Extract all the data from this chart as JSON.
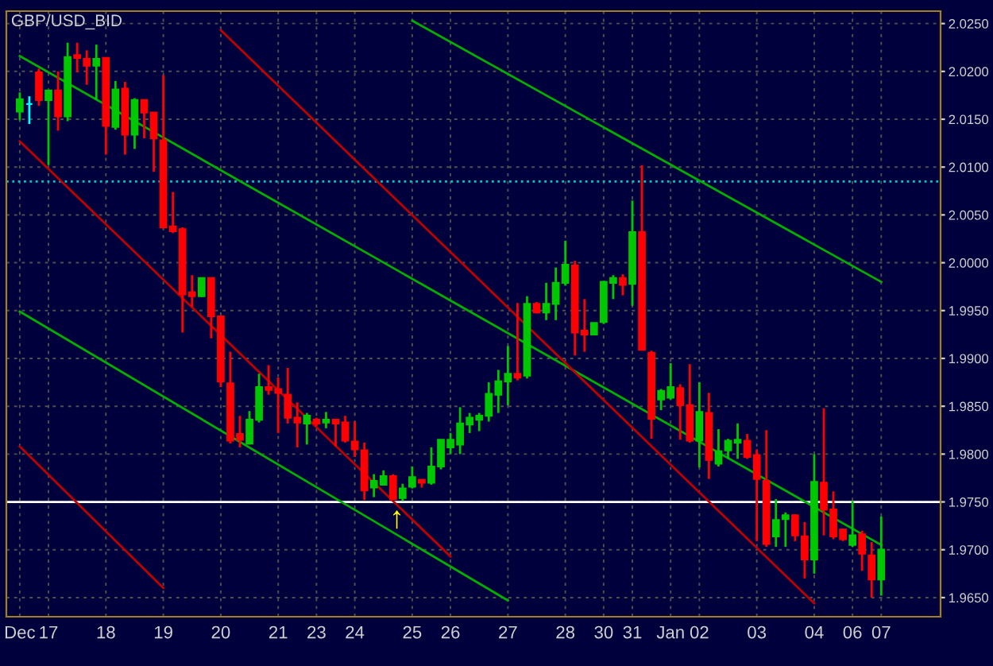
{
  "chart_data": {
    "type": "candlestick",
    "title": "GBP/USD_BID",
    "categories": [
      "Dec",
      null,
      null,
      "17",
      null,
      null,
      null,
      null,
      null,
      "18",
      null,
      null,
      null,
      null,
      null,
      "19",
      null,
      null,
      null,
      null,
      null,
      "20",
      null,
      null,
      null,
      null,
      null,
      "21",
      null,
      null,
      null,
      "23",
      null,
      null,
      null,
      "24",
      null,
      null,
      null,
      null,
      null,
      "25",
      null,
      null,
      null,
      "26",
      null,
      null,
      null,
      null,
      null,
      "27",
      null,
      null,
      null,
      null,
      null,
      "28",
      null,
      null,
      null,
      "30",
      null,
      null,
      "31",
      null,
      null,
      null,
      "Jan",
      null,
      null,
      "02",
      null,
      null,
      null,
      null,
      null,
      "03",
      null,
      null,
      null,
      null,
      null,
      "04",
      null,
      null,
      null,
      "06",
      null,
      null,
      "07"
    ],
    "series": [
      {
        "ohlc": [
          [
            2.0158,
            2.0178,
            2.0149,
            2.0171
          ],
          [
            2.0166,
            2.0174,
            2.0145,
            2.0166
          ],
          [
            2.0199,
            2.0203,
            2.0164,
            2.017
          ],
          [
            2.017,
            2.018,
            2.0102,
            2.018
          ],
          [
            2.018,
            2.02,
            2.0138,
            2.0153
          ],
          [
            2.0153,
            2.023,
            2.0148,
            2.0215
          ],
          [
            2.0217,
            2.023,
            2.0199,
            2.0214
          ],
          [
            2.0213,
            2.0222,
            2.0186,
            2.0206
          ],
          [
            2.0206,
            2.0228,
            2.017,
            2.0213
          ],
          [
            2.0214,
            2.0214,
            2.0113,
            2.0143
          ],
          [
            2.0142,
            2.019,
            2.0139,
            2.0181
          ],
          [
            2.0182,
            2.0189,
            2.0113,
            2.0134
          ],
          [
            2.0134,
            2.0172,
            2.0119,
            2.017
          ],
          [
            2.017,
            2.017,
            2.013,
            2.0157
          ],
          [
            2.0157,
            2.0157,
            2.0095,
            2.013
          ],
          [
            2.0128,
            2.0196,
            2.0036,
            2.0037
          ],
          [
            2.0038,
            2.0074,
            2.0031,
            2.0033
          ],
          [
            2.0035,
            2.0037,
            1.9927,
            1.9967
          ],
          [
            1.9969,
            1.9987,
            1.9954,
            1.9965
          ],
          [
            1.9965,
            1.9984,
            1.9964,
            1.9984
          ],
          [
            1.9984,
            1.9984,
            1.9921,
            1.9944
          ],
          [
            1.9944,
            1.9944,
            1.987,
            1.9876
          ],
          [
            1.9874,
            1.9907,
            1.9811,
            1.9814
          ],
          [
            1.9821,
            1.984,
            1.9807,
            1.9815
          ],
          [
            1.9811,
            1.9845,
            1.981,
            1.9836
          ],
          [
            1.9836,
            1.9884,
            1.9833,
            1.987
          ],
          [
            1.987,
            1.9893,
            1.9862,
            1.9867
          ],
          [
            1.9868,
            1.988,
            1.9822,
            1.9864
          ],
          [
            1.9862,
            1.989,
            1.9832,
            1.9838
          ],
          [
            1.9838,
            1.9854,
            1.9807,
            1.9833
          ],
          [
            1.9832,
            1.9843,
            1.981,
            1.984
          ],
          [
            1.9836,
            1.9838,
            1.9829,
            1.9832
          ],
          [
            1.9833,
            1.9844,
            1.9827,
            1.9836
          ],
          [
            1.9836,
            1.9836,
            1.9808,
            1.9832
          ],
          [
            1.9833,
            1.984,
            1.9812,
            1.9814
          ],
          [
            1.9813,
            1.9834,
            1.9797,
            1.9805
          ],
          [
            1.9804,
            1.9812,
            1.9752,
            1.9762
          ],
          [
            1.9765,
            1.9779,
            1.9755,
            1.9772
          ],
          [
            1.9768,
            1.9783,
            1.9768,
            1.9777
          ],
          [
            1.9777,
            1.9779,
            1.9753,
            1.9753
          ],
          [
            1.9754,
            1.9769,
            1.9751,
            1.9764
          ],
          [
            1.9766,
            1.9787,
            1.9764,
            1.9776
          ],
          [
            1.9773,
            1.9773,
            1.9765,
            1.977
          ],
          [
            1.977,
            1.9807,
            1.9768,
            1.9787
          ],
          [
            1.9787,
            1.9815,
            1.9784,
            1.9815
          ],
          [
            1.9807,
            1.9822,
            1.98,
            1.9815
          ],
          [
            1.981,
            1.9849,
            1.98,
            1.9832
          ],
          [
            1.9831,
            1.9843,
            1.9822,
            1.9838
          ],
          [
            1.9836,
            1.9843,
            1.9824,
            1.984
          ],
          [
            1.984,
            1.9875,
            1.9834,
            1.9863
          ],
          [
            1.9862,
            1.9888,
            1.9843,
            1.9876
          ],
          [
            1.9876,
            1.9913,
            1.9851,
            1.9884
          ],
          [
            1.9884,
            1.9958,
            1.9877,
            1.988
          ],
          [
            1.9882,
            1.9965,
            1.9879,
            1.9957
          ],
          [
            1.9957,
            1.9959,
            1.9947,
            1.9948
          ],
          [
            1.9948,
            1.9979,
            1.994,
            1.9957
          ],
          [
            1.9957,
            1.9995,
            1.994,
            1.9979
          ],
          [
            1.9979,
            2.0023,
            1.9976,
            1.9998
          ],
          [
            1.9997,
            2.0002,
            1.9903,
            1.9927
          ],
          [
            1.9929,
            1.9962,
            1.9907,
            1.9925
          ],
          [
            1.9925,
            1.9937,
            1.9925,
            1.9937
          ],
          [
            1.9938,
            1.9981,
            1.9936,
            1.998
          ],
          [
            1.9979,
            1.9987,
            1.9962,
            1.9984
          ],
          [
            1.9984,
            1.9988,
            1.9966,
            1.9977
          ],
          [
            1.9978,
            2.0065,
            1.9955,
            2.0032
          ],
          [
            2.0032,
            2.0102,
            1.9909,
            1.9909
          ],
          [
            1.9906,
            1.9908,
            1.9816,
            1.9837
          ],
          [
            1.9857,
            1.9868,
            1.9846,
            1.9866
          ],
          [
            1.9859,
            1.9895,
            1.9857,
            1.987
          ],
          [
            1.9869,
            1.9873,
            1.9815,
            1.9851
          ],
          [
            1.9851,
            1.9894,
            1.9812,
            1.9814
          ],
          [
            1.9814,
            1.9875,
            1.9786,
            1.9844
          ],
          [
            1.9843,
            1.9864,
            1.9774,
            1.9794
          ],
          [
            1.979,
            1.9826,
            1.9787,
            1.9803
          ],
          [
            1.9804,
            1.9816,
            1.9795,
            1.9814
          ],
          [
            1.9812,
            1.9832,
            1.9795,
            1.9815
          ],
          [
            1.9814,
            1.9821,
            1.9795,
            1.9797
          ],
          [
            1.9799,
            1.9805,
            1.9709,
            1.9774
          ],
          [
            1.9772,
            1.9825,
            1.9703,
            1.9706
          ],
          [
            1.9714,
            1.9753,
            1.9703,
            1.9731
          ],
          [
            1.9732,
            1.9739,
            1.9703,
            1.9736
          ],
          [
            1.9736,
            1.9737,
            1.9709,
            1.9715
          ],
          [
            1.9714,
            1.9729,
            1.967,
            1.969
          ],
          [
            1.969,
            1.98,
            1.9675,
            1.9771
          ],
          [
            1.977,
            1.9848,
            1.9715,
            1.9742
          ],
          [
            1.9742,
            1.9761,
            1.9711,
            1.9714
          ],
          [
            1.9721,
            1.9722,
            1.9709,
            1.9711
          ],
          [
            1.9705,
            1.9751,
            1.9703,
            1.9715
          ],
          [
            1.9716,
            1.972,
            1.9678,
            1.9696
          ],
          [
            1.9694,
            1.9708,
            1.965,
            1.9669
          ],
          [
            1.9669,
            1.9735,
            1.9652,
            1.97
          ]
        ],
        "colors": [
          "#00c800",
          "#00ffff",
          "#ff0000",
          "#00c800",
          "#ff0000",
          "#00c800",
          "#ff0000",
          "#ff0000",
          "#00c800",
          "#ff0000",
          "#00c800",
          "#ff0000",
          "#00c800",
          "#ff0000",
          "#ff0000",
          "#ff0000",
          "#ff0000",
          "#ff0000",
          "#ff0000",
          "#00c800",
          "#ff0000",
          "#ff0000",
          "#ff0000",
          "#ff0000",
          "#00c800",
          "#00c800",
          "#ff0000",
          "#ff0000",
          "#ff0000",
          "#ff0000",
          "#00c800",
          "#ff0000",
          "#00c800",
          "#ff0000",
          "#ff0000",
          "#ff0000",
          "#ff0000",
          "#00c800",
          "#00c800",
          "#ff0000",
          "#00c800",
          "#00c800",
          "#ff0000",
          "#00c800",
          "#00c800",
          "#00c800",
          "#00c800",
          "#00c800",
          "#00c800",
          "#00c800",
          "#00c800",
          "#00c800",
          "#ff0000",
          "#00c800",
          "#ff0000",
          "#00c800",
          "#00c800",
          "#00c800",
          "#ff0000",
          "#ff0000",
          "#00c800",
          "#00c800",
          "#00c800",
          "#ff0000",
          "#00c800",
          "#ff0000",
          "#ff0000",
          "#00c800",
          "#00c800",
          "#ff0000",
          "#ff0000",
          "#00c800",
          "#ff0000",
          "#00c800",
          "#00c800",
          "#00c800",
          "#ff0000",
          "#ff0000",
          "#ff0000",
          "#00c800",
          "#00c800",
          "#ff0000",
          "#ff0000",
          "#00c800",
          "#ff0000",
          "#ff0000",
          "#ff0000",
          "#00c800",
          "#ff0000",
          "#ff0000",
          "#00c800"
        ]
      },
      {
        "type": "line",
        "x": [
          "25",
          "07"
        ],
        "values": [
          2.0253,
          1.998
        ],
        "color": "#00b000"
      },
      {
        "type": "line",
        "x": [
          "Dec",
          "07"
        ],
        "values": [
          2.0216,
          1.9705
        ],
        "color": "#00b000"
      },
      {
        "type": "line",
        "x": [
          "Dec",
          "27"
        ],
        "values": [
          1.9949,
          1.9647
        ],
        "color": "#00b000"
      },
      {
        "type": "line",
        "x": [
          "20",
          "04"
        ],
        "values": [
          2.0243,
          1.9644
        ],
        "color": "#c00000"
      },
      {
        "type": "line",
        "x": [
          "Dec",
          "26"
        ],
        "values": [
          2.0127,
          1.9693
        ],
        "color": "#c00000"
      },
      {
        "type": "line",
        "x": [
          "Dec",
          "19"
        ],
        "values": [
          1.9808,
          1.966
        ],
        "color": "#c00000"
      }
    ],
    "ylim": [
      1.963,
      2.0263
    ],
    "yticks": [
      {
        "value": 1.965,
        "label": "1.9650"
      },
      {
        "value": 1.97,
        "label": "1.9700"
      },
      {
        "value": 1.975,
        "label": "1.9750"
      },
      {
        "value": 1.98,
        "label": "1.9800"
      },
      {
        "value": 1.985,
        "label": "1.9850"
      },
      {
        "value": 1.99,
        "label": "1.9900"
      },
      {
        "value": 1.995,
        "label": "1.9950"
      },
      {
        "value": 2.0,
        "label": "2.0000"
      },
      {
        "value": 2.005,
        "label": "2.0050"
      },
      {
        "value": 2.01,
        "label": "2.0100"
      },
      {
        "value": 2.015,
        "label": "2.0150"
      },
      {
        "value": 2.02,
        "label": "2.0200"
      },
      {
        "value": 2.025,
        "label": "2.0250"
      }
    ],
    "ref_lines": [
      {
        "axis": "y",
        "value": 2.0085,
        "color": "#00c8c8",
        "line_style": "dotted"
      },
      {
        "axis": "y",
        "value": 1.975,
        "color": "#ffffff",
        "line_style": "solid"
      }
    ],
    "annotations": [
      "↑"
    ],
    "grid": true
  }
}
